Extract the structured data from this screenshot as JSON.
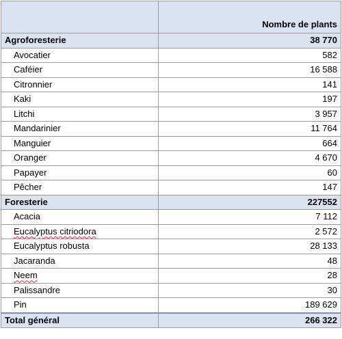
{
  "header": {
    "col1": "",
    "col2": "Nombre de plants"
  },
  "groups": [
    {
      "label": "Agroforesterie",
      "total": "38 770",
      "items": [
        {
          "name": "Avocatier",
          "value": "582"
        },
        {
          "name": "Caféier",
          "value": "16 588"
        },
        {
          "name": "Citronnier",
          "value": "141"
        },
        {
          "name": "Kaki",
          "value": "197"
        },
        {
          "name": "Litchi",
          "value": "3 957"
        },
        {
          "name": "Mandarinier",
          "value": "11 764"
        },
        {
          "name": "Manguier",
          "value": "664"
        },
        {
          "name": "Oranger",
          "value": "4 670"
        },
        {
          "name": "Papayer",
          "value": "60"
        },
        {
          "name": "Pêcher",
          "value": "147"
        }
      ]
    },
    {
      "label": "Foresterie",
      "total": "227552",
      "items": [
        {
          "name": "Acacia",
          "value": "7 112"
        },
        {
          "name": "Eucalyptus citriodora",
          "value": "2 572"
        },
        {
          "name": "Eucalyptus robusta",
          "value": "28 133"
        },
        {
          "name": "Jacaranda",
          "value": "48"
        },
        {
          "name": "Neem",
          "value": "28"
        },
        {
          "name": "Palissandre",
          "value": "30"
        },
        {
          "name": "Pin",
          "value": "189 629"
        }
      ]
    }
  ],
  "grand_total": {
    "label": "Total général",
    "value": "266 322"
  }
}
